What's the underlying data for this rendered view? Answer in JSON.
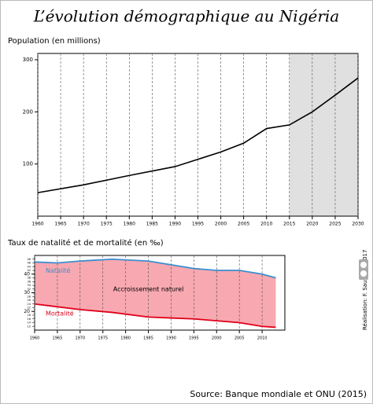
{
  "title": "L’évolution démographique au Nigéria",
  "source": "Source: Banque mondiale et ONU (2015)",
  "credit": "Réalisation: F. Sauzeau, 2017",
  "chart_data": [
    {
      "type": "line",
      "ylabel": "Population (en millions)",
      "x": [
        1960,
        1970,
        1980,
        1990,
        2000,
        2005,
        2010,
        2015,
        2020,
        2025,
        2030
      ],
      "series": [
        {
          "color": "#000000",
          "values": [
            45,
            60,
            78,
            95,
            123,
            140,
            168,
            175,
            200,
            232,
            265
          ]
        }
      ],
      "xlim": [
        1960,
        2030
      ],
      "xticks": [
        1960,
        1965,
        1970,
        1975,
        1980,
        1985,
        1990,
        1995,
        2000,
        2005,
        2010,
        2015,
        2020,
        2025,
        2030
      ],
      "ylim": [
        0,
        312
      ],
      "yticks": [
        100,
        200,
        300
      ],
      "shaded_xlim": [
        2015,
        2030
      ],
      "shade_color": "#e0e0e0",
      "grid": true
    },
    {
      "type": "area",
      "ylabel": "Taux de natalité et de mortalité (en ‰)",
      "annotation": "Accroissement naturel",
      "x": [
        1960,
        1965,
        1970,
        1977,
        1985,
        1990,
        1995,
        2000,
        2005,
        2010,
        2013
      ],
      "series": [
        {
          "name": "Natalité",
          "color": "#3a8fd0",
          "values": [
            46.5,
            46,
            47,
            48,
            47,
            45,
            43,
            42,
            42,
            40,
            38
          ]
        },
        {
          "name": "Mortalité",
          "color": "#e0001b",
          "values": [
            24,
            22.5,
            21,
            19.5,
            17,
            16.5,
            16,
            15,
            14,
            12,
            11.5
          ]
        }
      ],
      "fill_color": "#f7a8b0",
      "xlim": [
        1960,
        2015
      ],
      "xticks": [
        1960,
        1965,
        1970,
        1975,
        1980,
        1985,
        1990,
        1995,
        2000,
        2005,
        2010
      ],
      "ylim": [
        10,
        50
      ],
      "yticks": [
        20,
        30,
        40
      ],
      "minor_yticks": [
        12,
        14,
        16,
        18,
        22,
        24,
        26,
        28,
        32,
        34,
        36,
        38,
        42,
        44,
        46,
        48
      ],
      "grid": true
    }
  ]
}
